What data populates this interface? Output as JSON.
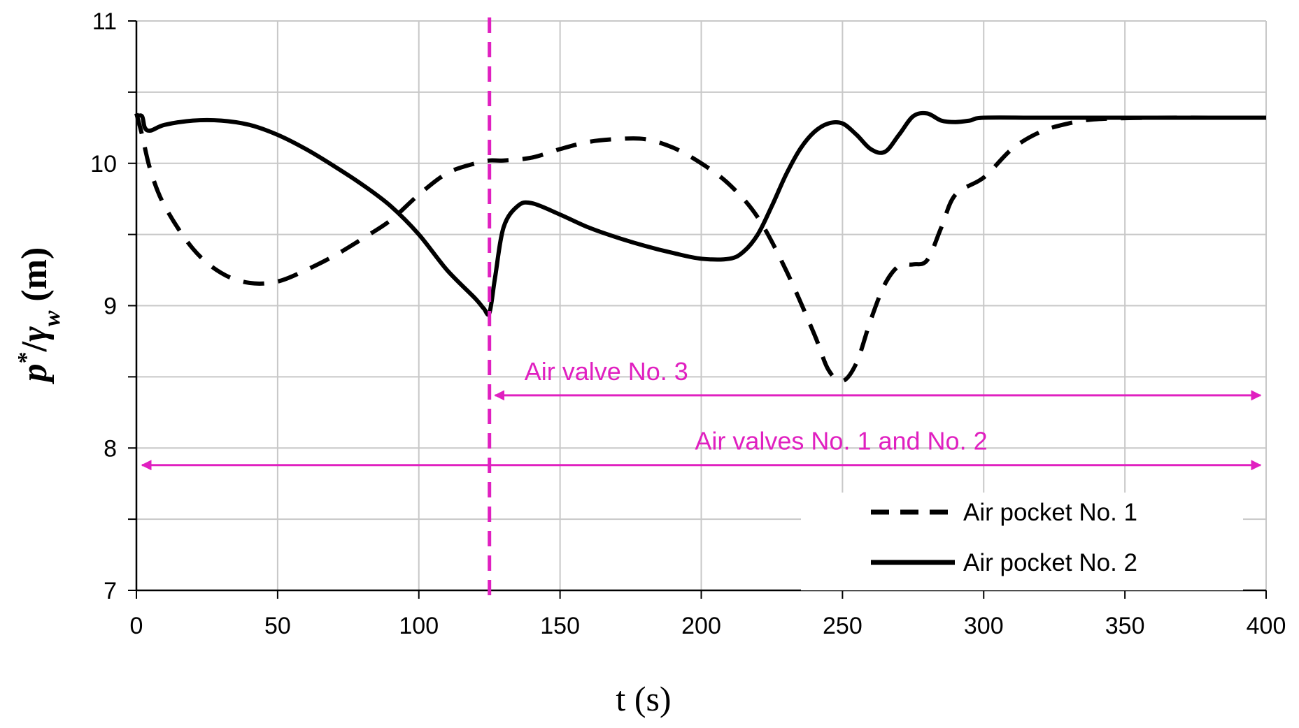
{
  "chart_data": {
    "type": "line",
    "title": "",
    "xlabel": "t (s)",
    "ylabel": {
      "main": "p",
      "sup": "*",
      "slash": "/",
      "greek": "γ",
      "sub": "w",
      "unit": " (m)"
    },
    "xlim": [
      0,
      400
    ],
    "ylim": [
      7,
      11
    ],
    "x_ticks": [
      "0",
      "50",
      "100",
      "150",
      "200",
      "250",
      "300",
      "350",
      "400"
    ],
    "y_ticks": [
      "7",
      "8",
      "9",
      "10",
      "11"
    ],
    "grid": true,
    "legend_position": "bottom-right",
    "series": [
      {
        "name": "Air pocket No. 1",
        "style": "dashed",
        "color": "#000000",
        "x": [
          0,
          2,
          5,
          10,
          20,
          30,
          40,
          50,
          60,
          70,
          80,
          90,
          100,
          110,
          120,
          125,
          130,
          140,
          150,
          160,
          170,
          180,
          190,
          200,
          210,
          220,
          230,
          240,
          245,
          250,
          255,
          260,
          265,
          270,
          275,
          280,
          285,
          290,
          300,
          310,
          320,
          330,
          340,
          360,
          380,
          400
        ],
        "y": [
          10.35,
          10.2,
          9.95,
          9.7,
          9.4,
          9.23,
          9.16,
          9.17,
          9.25,
          9.35,
          9.47,
          9.6,
          9.78,
          9.93,
          10.0,
          10.02,
          10.02,
          10.04,
          10.1,
          10.15,
          10.17,
          10.17,
          10.11,
          10.0,
          9.85,
          9.62,
          9.25,
          8.8,
          8.55,
          8.47,
          8.6,
          8.9,
          9.15,
          9.28,
          9.29,
          9.32,
          9.55,
          9.78,
          9.9,
          10.1,
          10.22,
          10.28,
          10.31,
          10.32,
          10.32,
          10.32
        ]
      },
      {
        "name": "Air pocket No. 2",
        "style": "solid",
        "color": "#000000",
        "x": [
          0,
          2,
          3,
          5,
          10,
          20,
          30,
          40,
          50,
          60,
          70,
          80,
          90,
          100,
          110,
          120,
          123,
          125,
          127,
          130,
          135,
          140,
          150,
          160,
          170,
          180,
          190,
          200,
          210,
          215,
          220,
          225,
          230,
          235,
          240,
          245,
          250,
          255,
          260,
          265,
          270,
          275,
          280,
          285,
          290,
          295,
          300,
          320,
          350,
          400
        ],
        "y": [
          10.33,
          10.33,
          10.25,
          10.23,
          10.27,
          10.3,
          10.3,
          10.27,
          10.2,
          10.1,
          9.98,
          9.85,
          9.7,
          9.5,
          9.25,
          9.05,
          8.98,
          8.95,
          9.2,
          9.55,
          9.7,
          9.72,
          9.64,
          9.55,
          9.48,
          9.42,
          9.37,
          9.33,
          9.33,
          9.38,
          9.5,
          9.7,
          9.92,
          10.1,
          10.22,
          10.28,
          10.28,
          10.2,
          10.1,
          10.08,
          10.2,
          10.33,
          10.35,
          10.3,
          10.29,
          10.3,
          10.32,
          10.32,
          10.32,
          10.32
        ]
      }
    ],
    "markers": [
      {
        "type": "vertical-dashed-line",
        "x": 125,
        "color": "#e020c0"
      }
    ],
    "annotations": [
      {
        "text": "Air valve No. 3",
        "x_start": 125,
        "x_end": 400,
        "y": 8.37,
        "color": "#e020c0"
      },
      {
        "text": "Air valves No. 1 and No. 2",
        "x_start": 0,
        "x_end": 400,
        "y": 7.88,
        "color": "#e020c0"
      }
    ]
  }
}
